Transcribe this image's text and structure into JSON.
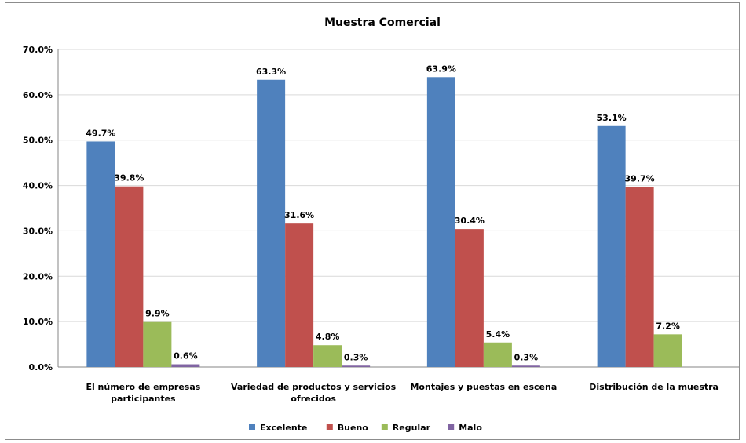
{
  "chart_data": {
    "type": "bar",
    "title": "Muestra Comercial",
    "categories": [
      [
        "El número de empresas",
        "participantes"
      ],
      [
        "Variedad de productos y servicios",
        "ofrecidos"
      ],
      [
        "Montajes y puestas en escena"
      ],
      [
        "Distribución de la muestra"
      ]
    ],
    "series": [
      {
        "name": "Excelente",
        "color": "#4f81bd",
        "values": [
          49.7,
          63.3,
          63.9,
          53.1
        ],
        "labels": [
          "49.7%",
          "63.3%",
          "63.9%",
          "53.1%"
        ]
      },
      {
        "name": "Bueno",
        "color": "#c0504d",
        "values": [
          39.8,
          31.6,
          30.4,
          39.7
        ],
        "labels": [
          "39.8%",
          "31.6%",
          "30.4%",
          "39.7%"
        ]
      },
      {
        "name": "Regular",
        "color": "#9bbb59",
        "values": [
          9.9,
          4.8,
          5.4,
          7.2
        ],
        "labels": [
          "9.9%",
          "4.8%",
          "5.4%",
          "7.2%"
        ]
      },
      {
        "name": "Malo",
        "color": "#8064a2",
        "values": [
          0.6,
          0.3,
          0.3,
          null
        ],
        "labels": [
          "0.6%",
          "0.3%",
          "0.3%",
          null
        ]
      }
    ],
    "yticks": [
      "0.0%",
      "10.0%",
      "20.0%",
      "30.0%",
      "40.0%",
      "50.0%",
      "60.0%",
      "70.0%"
    ],
    "ylim": [
      0,
      70
    ],
    "grid": true,
    "legend_position": "bottom"
  }
}
